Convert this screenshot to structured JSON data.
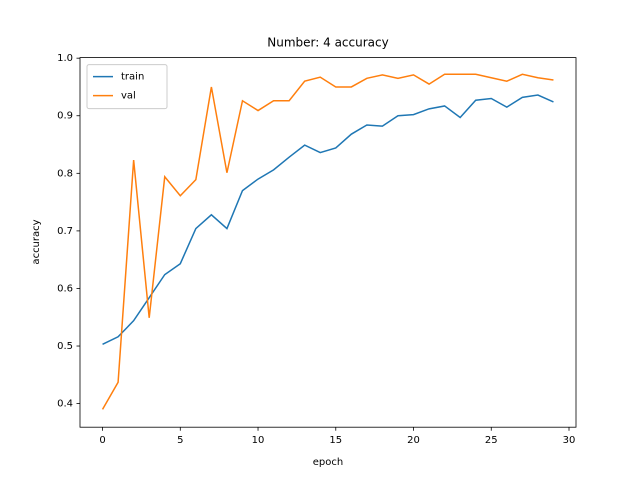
{
  "chart_data": {
    "type": "line",
    "title": "Number: 4 accuracy",
    "x_label": "epoch",
    "y_label": "accuracy",
    "x": [
      0,
      1,
      2,
      3,
      4,
      5,
      6,
      7,
      8,
      9,
      10,
      11,
      12,
      13,
      14,
      15,
      16,
      17,
      18,
      19,
      20,
      21,
      22,
      23,
      24,
      25,
      26,
      27,
      28,
      29
    ],
    "series": [
      {
        "name": "train",
        "color": "#1f77b4",
        "values": [
          0.503,
          0.516,
          0.544,
          0.584,
          0.624,
          0.643,
          0.704,
          0.728,
          0.704,
          0.77,
          0.79,
          0.806,
          0.828,
          0.849,
          0.836,
          0.844,
          0.868,
          0.884,
          0.882,
          0.9,
          0.902,
          0.912,
          0.917,
          0.897,
          0.927,
          0.93,
          0.915,
          0.932,
          0.936,
          0.924
        ]
      },
      {
        "name": "val",
        "color": "#ff7f0e",
        "values": [
          0.39,
          0.437,
          0.823,
          0.549,
          0.794,
          0.761,
          0.789,
          0.95,
          0.801,
          0.926,
          0.909,
          0.926,
          0.926,
          0.96,
          0.967,
          0.95,
          0.95,
          0.965,
          0.971,
          0.965,
          0.971,
          0.955,
          0.972,
          0.972,
          0.972,
          0.966,
          0.96,
          0.972,
          0.966,
          0.962
        ]
      }
    ],
    "xlim": [
      -1.45,
      30.45
    ],
    "xticks": [
      0,
      5,
      10,
      15,
      20,
      25,
      30
    ],
    "ylim": [
      0.359,
      1.001
    ],
    "yticks": [
      0.4,
      0.5,
      0.6,
      0.7,
      0.8,
      0.9,
      {
        "value": 1.0,
        "label": "1.0"
      }
    ],
    "legend": "upper left",
    "grid": false
  }
}
